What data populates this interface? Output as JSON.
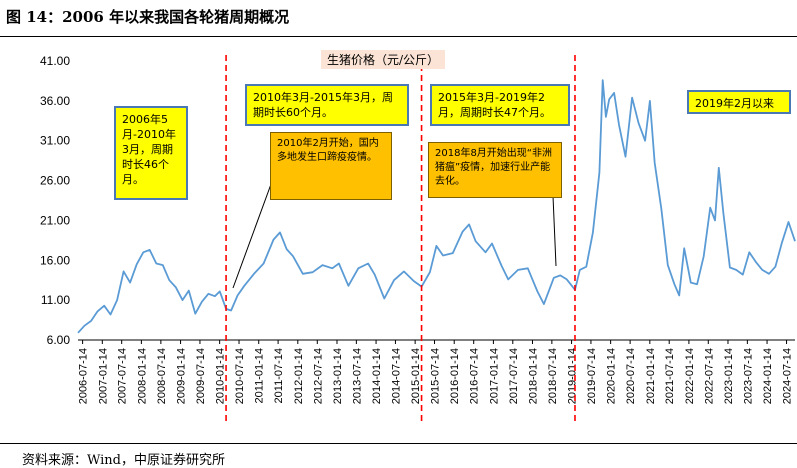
{
  "figure_title": "图 14：2006 年以来我国各轮猪周期概况",
  "source_note": "资料来源：Wind，中原证券研究所",
  "chart_data": {
    "type": "line",
    "title": "",
    "series": [
      {
        "name": "生猪价格（元/公斤）",
        "color": "#5b9bd5",
        "points": [
          [
            "2006-06-01",
            6.9
          ],
          [
            "2006-08-01",
            7.8
          ],
          [
            "2006-10-01",
            8.4
          ],
          [
            "2006-12-01",
            9.6
          ],
          [
            "2007-02-01",
            10.3
          ],
          [
            "2007-04-01",
            9.2
          ],
          [
            "2007-06-01",
            11.0
          ],
          [
            "2007-08-01",
            14.6
          ],
          [
            "2007-10-01",
            13.2
          ],
          [
            "2007-12-01",
            15.5
          ],
          [
            "2008-02-01",
            17.0
          ],
          [
            "2008-04-01",
            17.3
          ],
          [
            "2008-06-01",
            15.6
          ],
          [
            "2008-08-01",
            15.4
          ],
          [
            "2008-10-01",
            13.5
          ],
          [
            "2008-12-01",
            12.6
          ],
          [
            "2009-02-01",
            11.0
          ],
          [
            "2009-04-01",
            12.2
          ],
          [
            "2009-06-01",
            9.3
          ],
          [
            "2009-08-01",
            10.8
          ],
          [
            "2009-10-01",
            11.8
          ],
          [
            "2009-12-01",
            11.5
          ],
          [
            "2010-01-15",
            12.1
          ],
          [
            "2010-03-15",
            9.9
          ],
          [
            "2010-05-01",
            9.7
          ],
          [
            "2010-07-01",
            11.6
          ],
          [
            "2010-09-01",
            12.8
          ],
          [
            "2010-12-01",
            14.3
          ],
          [
            "2011-03-01",
            15.6
          ],
          [
            "2011-06-01",
            18.6
          ],
          [
            "2011-08-01",
            19.5
          ],
          [
            "2011-10-01",
            17.4
          ],
          [
            "2011-12-01",
            16.5
          ],
          [
            "2012-03-01",
            14.3
          ],
          [
            "2012-06-01",
            14.5
          ],
          [
            "2012-09-01",
            15.4
          ],
          [
            "2012-12-01",
            15.0
          ],
          [
            "2013-02-01",
            15.6
          ],
          [
            "2013-05-01",
            12.8
          ],
          [
            "2013-08-01",
            15.0
          ],
          [
            "2013-11-01",
            15.6
          ],
          [
            "2014-01-01",
            14.2
          ],
          [
            "2014-04-01",
            11.2
          ],
          [
            "2014-07-01",
            13.5
          ],
          [
            "2014-10-01",
            14.6
          ],
          [
            "2015-01-01",
            13.4
          ],
          [
            "2015-03-15",
            12.7
          ],
          [
            "2015-06-01",
            14.5
          ],
          [
            "2015-08-01",
            17.8
          ],
          [
            "2015-10-01",
            16.6
          ],
          [
            "2016-01-01",
            16.9
          ],
          [
            "2016-04-01",
            19.6
          ],
          [
            "2016-06-01",
            20.5
          ],
          [
            "2016-08-01",
            18.4
          ],
          [
            "2016-11-01",
            17.0
          ],
          [
            "2017-01-01",
            18.1
          ],
          [
            "2017-04-01",
            15.3
          ],
          [
            "2017-06-01",
            13.6
          ],
          [
            "2017-09-01",
            14.8
          ],
          [
            "2017-12-01",
            15.0
          ],
          [
            "2018-03-01",
            12.1
          ],
          [
            "2018-05-01",
            10.5
          ],
          [
            "2018-08-01",
            13.8
          ],
          [
            "2018-10-01",
            14.1
          ],
          [
            "2018-12-01",
            13.6
          ],
          [
            "2019-02-15",
            12.3
          ],
          [
            "2019-04-01",
            14.8
          ],
          [
            "2019-06-01",
            15.2
          ],
          [
            "2019-08-01",
            19.5
          ],
          [
            "2019-10-01",
            27.0
          ],
          [
            "2019-11-01",
            38.6
          ],
          [
            "2019-12-01",
            34.0
          ],
          [
            "2020-01-01",
            36.2
          ],
          [
            "2020-02-15",
            37.0
          ],
          [
            "2020-04-01",
            33.0
          ],
          [
            "2020-06-01",
            29.0
          ],
          [
            "2020-08-01",
            36.4
          ],
          [
            "2020-10-01",
            33.2
          ],
          [
            "2020-12-01",
            31.0
          ],
          [
            "2021-01-15",
            36.0
          ],
          [
            "2021-03-01",
            28.2
          ],
          [
            "2021-05-01",
            22.5
          ],
          [
            "2021-07-01",
            15.4
          ],
          [
            "2021-09-01",
            13.0
          ],
          [
            "2021-10-15",
            11.6
          ],
          [
            "2021-12-01",
            17.5
          ],
          [
            "2022-02-01",
            13.2
          ],
          [
            "2022-04-01",
            13.0
          ],
          [
            "2022-06-01",
            16.5
          ],
          [
            "2022-08-01",
            22.6
          ],
          [
            "2022-09-15",
            21.0
          ],
          [
            "2022-10-20",
            27.6
          ],
          [
            "2022-12-01",
            22.0
          ],
          [
            "2023-02-01",
            15.1
          ],
          [
            "2023-04-01",
            14.8
          ],
          [
            "2023-06-01",
            14.2
          ],
          [
            "2023-08-01",
            17.0
          ],
          [
            "2023-10-01",
            15.8
          ],
          [
            "2023-12-01",
            14.8
          ],
          [
            "2024-02-01",
            14.3
          ],
          [
            "2024-04-01",
            15.2
          ],
          [
            "2024-06-01",
            18.2
          ],
          [
            "2024-08-01",
            20.8
          ],
          [
            "2024-10-01",
            18.4
          ]
        ]
      }
    ],
    "y_ticks": [
      "6.00",
      "11.00",
      "16.00",
      "21.00",
      "26.00",
      "31.00",
      "36.00",
      "41.00"
    ],
    "ylim": [
      6,
      41
    ],
    "x_ticks": [
      "2006-07-14",
      "2007-01-14",
      "2007-07-14",
      "2008-01-14",
      "2008-07-14",
      "2009-01-14",
      "2009-07-14",
      "2010-01-14",
      "2010-07-14",
      "2011-01-14",
      "2011-07-14",
      "2012-01-14",
      "2012-07-14",
      "2013-01-14",
      "2013-07-14",
      "2014-01-14",
      "2014-07-14",
      "2015-01-14",
      "2015-07-14",
      "2016-01-14",
      "2016-07-14",
      "2017-01-14",
      "2017-07-14",
      "2018-01-14",
      "2018-07-14",
      "2019-01-14",
      "2019-07-14",
      "2020-01-14",
      "2020-07-14",
      "2021-01-14",
      "2021-07-14",
      "2022-01-14",
      "2022-07-14",
      "2023-01-14",
      "2023-07-14",
      "2024-01-14",
      "2024-07-14"
    ],
    "xlim": [
      "2006-06-01",
      "2024-10-01"
    ],
    "grid": false,
    "cycle_boundaries": [
      "2010-03-15",
      "2015-03-15",
      "2019-02-15"
    ],
    "boundary_color": "#ff0000",
    "annotations": {
      "cycle1": "2006年5月-2010年3月，周期时长46个月。",
      "cycle2": "2010年3月-2015年3月，周期时长60个月。",
      "cycle3": "2015年3月-2019年2月，周期时长47个月。",
      "cycle4": "2019年2月以来",
      "event1": "2010年2月开始，国内多地发生口蹄疫疫情。",
      "event2": "2018年8月开始出现“非洲猪瘟”疫情，加速行业产能去化。"
    }
  }
}
